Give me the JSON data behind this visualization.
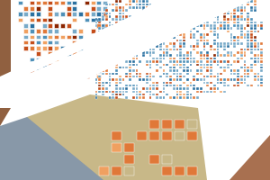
{
  "background_color": "#ffffff",
  "colors": {
    "dark_red": "#8b2500",
    "deep_orange": "#c44d1a",
    "medium_orange": "#e07838",
    "light_orange": "#f0a060",
    "light_blue": "#78aac8",
    "medium_blue": "#4e90b8",
    "deep_blue": "#2a70a0",
    "white": "#ffffff",
    "tan": "#c8b888",
    "sand": "#d8c898",
    "slate_blue": "#8898a8",
    "brown": "#906040",
    "brown2": "#a87050"
  },
  "figsize": [
    3.0,
    2.0
  ],
  "dpi": 100
}
